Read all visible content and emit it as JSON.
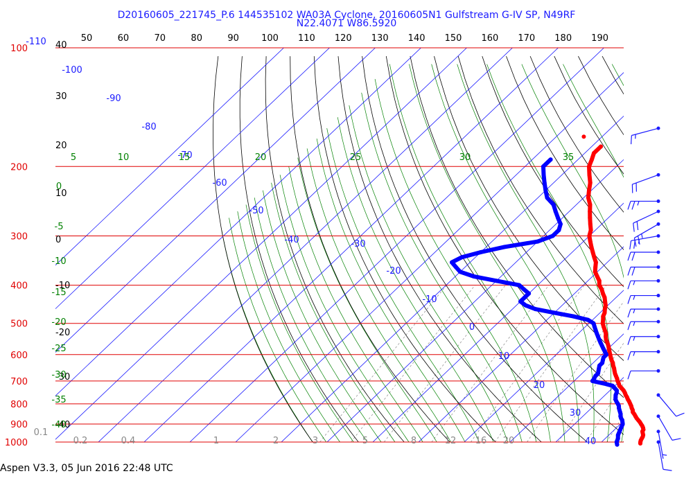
{
  "chart_data": {
    "type": "skew-t",
    "title": "D20160605_221745_P.6 144535102 WA03A Cyclone, 20160605N1 Gulfstream G-IV SP, N49RF",
    "subtitle": "N22.4071 W86.5920",
    "footer": "Aspen V3.3, 05 Jun 2016  22:48 UTC",
    "pressure_levels": [
      {
        "p": 100,
        "label": "100"
      },
      {
        "p": 200,
        "label": "200"
      },
      {
        "p": 300,
        "label": "300"
      },
      {
        "p": 400,
        "label": "400"
      },
      {
        "p": 500,
        "label": "500"
      },
      {
        "p": 600,
        "label": "600"
      },
      {
        "p": 700,
        "label": "700"
      },
      {
        "p": 800,
        "label": "800"
      },
      {
        "p": 900,
        "label": "900"
      },
      {
        "p": 1000,
        "label": "1000"
      }
    ],
    "top_theta_labels": [
      "50",
      "60",
      "70",
      "80",
      "90",
      "100",
      "110",
      "120",
      "130",
      "140",
      "150",
      "160",
      "170",
      "180",
      "190"
    ],
    "left_temp_labels": [
      "40",
      "30",
      "20",
      "10",
      "0",
      "-10",
      "-20",
      "-30",
      "-40"
    ],
    "isotherm_labels": [
      "-110",
      "-100",
      "-90",
      "-80",
      "-70",
      "-60",
      "-50",
      "-40",
      "-30",
      "-20",
      "-10",
      "0",
      "10",
      "20",
      "30",
      "40"
    ],
    "theta_e_labels": [
      "5",
      "10",
      "15",
      "20",
      "25",
      "30",
      "35"
    ],
    "left_green_labels": [
      "0",
      "-5",
      "-10",
      "-15",
      "-20",
      "-25",
      "-30",
      "-35",
      "-40"
    ],
    "mixing_ratio_labels": [
      "0.1",
      "0.2",
      "0.4",
      "1",
      "2",
      "3",
      "5",
      "8",
      "12",
      "16",
      "20"
    ],
    "temperature_profile": [
      [
        178,
        -48
      ],
      [
        185,
        -48
      ],
      [
        192,
        -47
      ],
      [
        200,
        -46
      ],
      [
        210,
        -44
      ],
      [
        220,
        -42
      ],
      [
        230,
        -40.5
      ],
      [
        240,
        -39
      ],
      [
        250,
        -37
      ],
      [
        260,
        -35.5
      ],
      [
        270,
        -34
      ],
      [
        280,
        -32.5
      ],
      [
        290,
        -31
      ],
      [
        300,
        -30
      ],
      [
        310,
        -28.5
      ],
      [
        320,
        -27
      ],
      [
        330,
        -25.5
      ],
      [
        340,
        -24
      ],
      [
        350,
        -22.5
      ],
      [
        360,
        -21.5
      ],
      [
        370,
        -20.5
      ],
      [
        380,
        -19
      ],
      [
        390,
        -17.5
      ],
      [
        400,
        -16.5
      ],
      [
        410,
        -15
      ],
      [
        420,
        -13.8
      ],
      [
        430,
        -12.5
      ],
      [
        440,
        -11.5
      ],
      [
        450,
        -10.5
      ],
      [
        460,
        -9.8
      ],
      [
        470,
        -9
      ],
      [
        480,
        -8.5
      ],
      [
        490,
        -7.7
      ],
      [
        500,
        -7
      ],
      [
        510,
        -6
      ],
      [
        520,
        -5
      ],
      [
        530,
        -4
      ],
      [
        540,
        -3.3
      ],
      [
        550,
        -2.5
      ],
      [
        560,
        -1.5
      ],
      [
        570,
        -0.6
      ],
      [
        580,
        0.2
      ],
      [
        590,
        1
      ],
      [
        600,
        1.8
      ],
      [
        610,
        2.6
      ],
      [
        620,
        3.4
      ],
      [
        630,
        4.3
      ],
      [
        640,
        5
      ],
      [
        650,
        5.8
      ],
      [
        660,
        6.5
      ],
      [
        670,
        7.2
      ],
      [
        680,
        8
      ],
      [
        690,
        8.8
      ],
      [
        700,
        9.5
      ],
      [
        710,
        10.3
      ],
      [
        720,
        11
      ],
      [
        730,
        12
      ],
      [
        740,
        13
      ],
      [
        750,
        13.8
      ],
      [
        760,
        14.5
      ],
      [
        770,
        15.3
      ],
      [
        780,
        16
      ],
      [
        790,
        16.8
      ],
      [
        800,
        17.5
      ],
      [
        810,
        18.2
      ],
      [
        820,
        18.8
      ],
      [
        830,
        19.5
      ],
      [
        840,
        20
      ],
      [
        850,
        20.8
      ],
      [
        860,
        21.5
      ],
      [
        870,
        22.2
      ],
      [
        880,
        23
      ],
      [
        890,
        23.8
      ],
      [
        900,
        24.5
      ],
      [
        910,
        25.2
      ],
      [
        920,
        25.8
      ],
      [
        930,
        26.3
      ],
      [
        940,
        26.5
      ],
      [
        950,
        27
      ],
      [
        960,
        27.5
      ],
      [
        970,
        27.8
      ],
      [
        980,
        28
      ],
      [
        990,
        28.2
      ],
      [
        1000,
        28.5
      ],
      [
        1008,
        28.8
      ]
    ],
    "dewpoint_profile": [
      [
        192,
        -56
      ],
      [
        200,
        -56
      ],
      [
        210,
        -54
      ],
      [
        220,
        -52
      ],
      [
        230,
        -50
      ],
      [
        240,
        -48
      ],
      [
        250,
        -45
      ],
      [
        260,
        -43
      ],
      [
        270,
        -41
      ],
      [
        280,
        -39
      ],
      [
        290,
        -38
      ],
      [
        300,
        -38
      ],
      [
        310,
        -40
      ],
      [
        320,
        -46
      ],
      [
        330,
        -50
      ],
      [
        340,
        -53
      ],
      [
        350,
        -54
      ],
      [
        360,
        -52
      ],
      [
        370,
        -50
      ],
      [
        380,
        -46
      ],
      [
        390,
        -40
      ],
      [
        400,
        -34
      ],
      [
        410,
        -32
      ],
      [
        420,
        -30
      ],
      [
        430,
        -30
      ],
      [
        440,
        -30
      ],
      [
        450,
        -28
      ],
      [
        460,
        -25
      ],
      [
        470,
        -20
      ],
      [
        480,
        -15
      ],
      [
        490,
        -11
      ],
      [
        500,
        -9
      ],
      [
        510,
        -8
      ],
      [
        520,
        -7
      ],
      [
        530,
        -6
      ],
      [
        540,
        -5
      ],
      [
        550,
        -4
      ],
      [
        560,
        -3
      ],
      [
        570,
        -2
      ],
      [
        580,
        -1
      ],
      [
        590,
        0
      ],
      [
        600,
        1
      ],
      [
        610,
        1
      ],
      [
        620,
        1.5
      ],
      [
        630,
        2
      ],
      [
        640,
        2
      ],
      [
        650,
        2.5
      ],
      [
        660,
        3
      ],
      [
        670,
        3.5
      ],
      [
        680,
        3.5
      ],
      [
        690,
        3.8
      ],
      [
        700,
        4
      ],
      [
        710,
        7
      ],
      [
        720,
        9.5
      ],
      [
        730,
        10.5
      ],
      [
        740,
        11.5
      ],
      [
        750,
        12
      ],
      [
        760,
        12.3
      ],
      [
        770,
        12.8
      ],
      [
        780,
        13.3
      ],
      [
        790,
        14
      ],
      [
        800,
        14.8
      ],
      [
        810,
        15.5
      ],
      [
        820,
        16
      ],
      [
        830,
        16.6
      ],
      [
        840,
        17.2
      ],
      [
        850,
        17.8
      ],
      [
        860,
        18.2
      ],
      [
        870,
        18.8
      ],
      [
        880,
        19.5
      ],
      [
        890,
        20
      ],
      [
        900,
        20.5
      ],
      [
        920,
        21
      ],
      [
        940,
        21.5
      ],
      [
        960,
        22
      ],
      [
        980,
        22.8
      ],
      [
        1000,
        23.3
      ],
      [
        1015,
        24
      ]
    ],
    "isolated_point": {
      "p": 168,
      "t": -54
    },
    "wind_barbs": [
      {
        "p": 160,
        "speed_kt": 15,
        "dir_deg": 255
      },
      {
        "p": 210,
        "speed_kt": 20,
        "dir_deg": 250
      },
      {
        "p": 245,
        "speed_kt": 25,
        "dir_deg": 270
      },
      {
        "p": 260,
        "speed_kt": 20,
        "dir_deg": 245
      },
      {
        "p": 280,
        "speed_kt": 25,
        "dir_deg": 240
      },
      {
        "p": 300,
        "speed_kt": 25,
        "dir_deg": 260
      },
      {
        "p": 330,
        "speed_kt": 20,
        "dir_deg": 270
      },
      {
        "p": 360,
        "speed_kt": 20,
        "dir_deg": 270
      },
      {
        "p": 390,
        "speed_kt": 15,
        "dir_deg": 270
      },
      {
        "p": 425,
        "speed_kt": 15,
        "dir_deg": 270
      },
      {
        "p": 460,
        "speed_kt": 15,
        "dir_deg": 270
      },
      {
        "p": 495,
        "speed_kt": 15,
        "dir_deg": 270
      },
      {
        "p": 540,
        "speed_kt": 15,
        "dir_deg": 270
      },
      {
        "p": 590,
        "speed_kt": 15,
        "dir_deg": 270
      },
      {
        "p": 660,
        "speed_kt": 10,
        "dir_deg": 270
      },
      {
        "p": 760,
        "speed_kt": 10,
        "dir_deg": 140
      },
      {
        "p": 860,
        "speed_kt": 10,
        "dir_deg": 150
      },
      {
        "p": 940,
        "speed_kt": 5,
        "dir_deg": 170
      },
      {
        "p": 1000,
        "speed_kt": 10,
        "dir_deg": 170
      }
    ],
    "colors": {
      "isobar": "#e00000",
      "isotherm": "#1a1aff",
      "dry_adiabat": "#000000",
      "moist_adiabat": "#008000",
      "mixing_ratio": "#888888",
      "temperature": "#ff0000",
      "dewpoint": "#0000ff",
      "wind": "#1a1aff",
      "title": "#1a1aff"
    }
  }
}
